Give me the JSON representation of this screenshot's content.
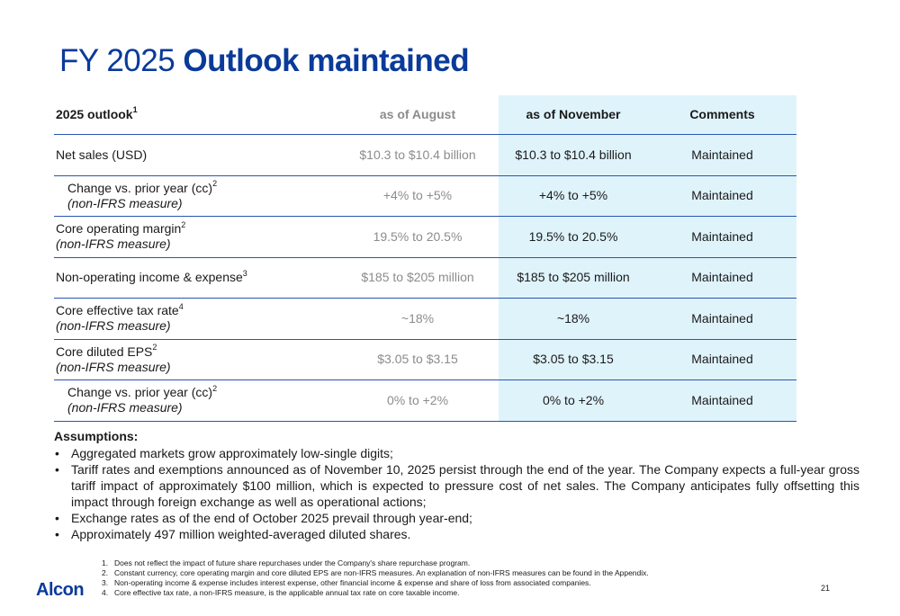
{
  "title": {
    "light": "FY 2025",
    "bold": "Outlook maintained"
  },
  "table": {
    "headers": {
      "label": "2025 outlook",
      "label_sup": "1",
      "august": "as of August",
      "november": "as of November",
      "comments": "Comments"
    },
    "rows": [
      {
        "label": "Net sales (USD)",
        "sup": "",
        "sub": "",
        "august": "$10.3 to $10.4 billion",
        "november": "$10.3 to $10.4 billion",
        "comment": "Maintained"
      },
      {
        "label": "Change vs. prior year (cc)",
        "sup": "2",
        "sub": "(non-IFRS measure)",
        "august": "+4% to +5%",
        "november": "+4% to +5%",
        "comment": "Maintained"
      },
      {
        "label": "Core operating margin",
        "sup": "2",
        "sub": "(non-IFRS measure)",
        "august": "19.5% to 20.5%",
        "november": "19.5% to 20.5%",
        "comment": "Maintained"
      },
      {
        "label": "Non-operating income & expense",
        "sup": "3",
        "sub": "",
        "august": "$185 to $205 million",
        "november": "$185 to $205 million",
        "comment": "Maintained"
      },
      {
        "label": "Core effective tax rate",
        "sup": "4",
        "sub": "(non-IFRS measure)",
        "august": "~18%",
        "november": "~18%",
        "comment": "Maintained"
      },
      {
        "label": "Core diluted EPS",
        "sup": "2",
        "sub": "(non-IFRS measure)",
        "august": "$3.05 to $3.15",
        "november": "$3.05 to $3.15",
        "comment": "Maintained"
      },
      {
        "label": "Change vs. prior year (cc)",
        "sup": "2",
        "sub": "(non-IFRS measure)",
        "august": "0% to +2%",
        "november": "0% to +2%",
        "comment": "Maintained"
      }
    ]
  },
  "assumptions": {
    "heading": "Assumptions:",
    "items": [
      "Aggregated markets grow approximately low-single digits;",
      "Tariff rates and exemptions announced as of November 10, 2025 persist through the end of the year. The Company expects a full-year gross tariff impact of approximately $100 million, which is expected to pressure cost of net sales. The Company anticipates fully offsetting this impact through foreign exchange as well as operational actions;",
      "Exchange rates as of the end of October 2025 prevail through year-end;",
      "Approximately 497 million weighted-averaged diluted shares."
    ]
  },
  "footnotes": [
    {
      "num": "1.",
      "text": "Does not reflect the impact of future share repurchases under the Company's share repurchase program."
    },
    {
      "num": "2.",
      "text": "Constant currency, core operating margin and core diluted EPS are non-IFRS measures. An explanation of non-IFRS measures can be found in the Appendix."
    },
    {
      "num": "3.",
      "text": "Non-operating income & expense includes interest expense, other financial income & expense and share of loss from associated companies."
    },
    {
      "num": "4.",
      "text": "Core effective tax rate, a non-IFRS measure, is the applicable annual tax rate on core taxable income."
    }
  ],
  "brand": {
    "logo": "Alcon",
    "color": "#0a3a9a",
    "highlight": "#dff3fb"
  },
  "page_number": "21"
}
